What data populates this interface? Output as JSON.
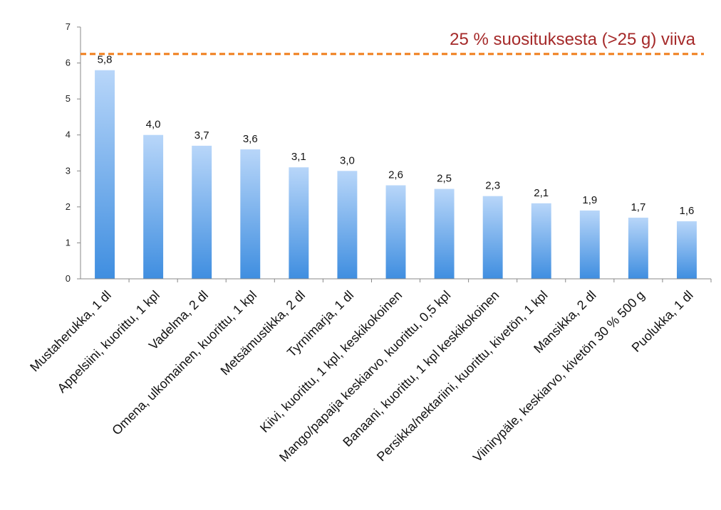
{
  "chart_data": {
    "type": "bar",
    "categories": [
      "Mustaherukka, 1 dl",
      "Appelsiini, kuorittu, 1 kpl",
      "Vadelma, 2 dl",
      "Omena, ulkomainen, kuorittu, 1 kpl",
      "Metsämustikka, 2 dl",
      "Tyrnimarja, 1 dl",
      "Kiivi, kuorittu, 1 kpl, keskikokoinen",
      "Mango/papaija keskiarvo, kuorittu, 0,5 kpl",
      "Banaani, kuorittu, 1 kpl keskikokoinen",
      "Persikka/nektariini, kuorittu, kivetön, 1 kpl",
      "Mansikka, 2 dl",
      "Viinirypäle, keskiarvo, kivetön  30 % 500 g",
      "Puolukka, 1 dl"
    ],
    "values": [
      5.8,
      4.0,
      3.7,
      3.6,
      3.1,
      3.0,
      2.6,
      2.5,
      2.3,
      2.1,
      1.9,
      1.7,
      1.6
    ],
    "value_labels": [
      "5,8",
      "4,0",
      "3,7",
      "3,6",
      "3,1",
      "3,0",
      "2,6",
      "2,5",
      "2,3",
      "2,1",
      "1,9",
      "1,7",
      "1,6"
    ],
    "title": "",
    "xlabel": "",
    "ylabel": "",
    "ylim": [
      0,
      7
    ],
    "yticks": [
      "0",
      "1",
      "2",
      "3",
      "4",
      "5",
      "6",
      "7"
    ],
    "grid": false,
    "legend": "none",
    "reference_line": {
      "value": 6.25,
      "label": "25 % suosituksesta (>25 g) viiva",
      "line_color": "#f07d1a",
      "label_color": "#a52a2a",
      "style": "dashed"
    },
    "colors": {
      "bar_top": "#b8d6f9",
      "bar_bottom": "#3f8ee0",
      "axis": "#888888"
    }
  }
}
